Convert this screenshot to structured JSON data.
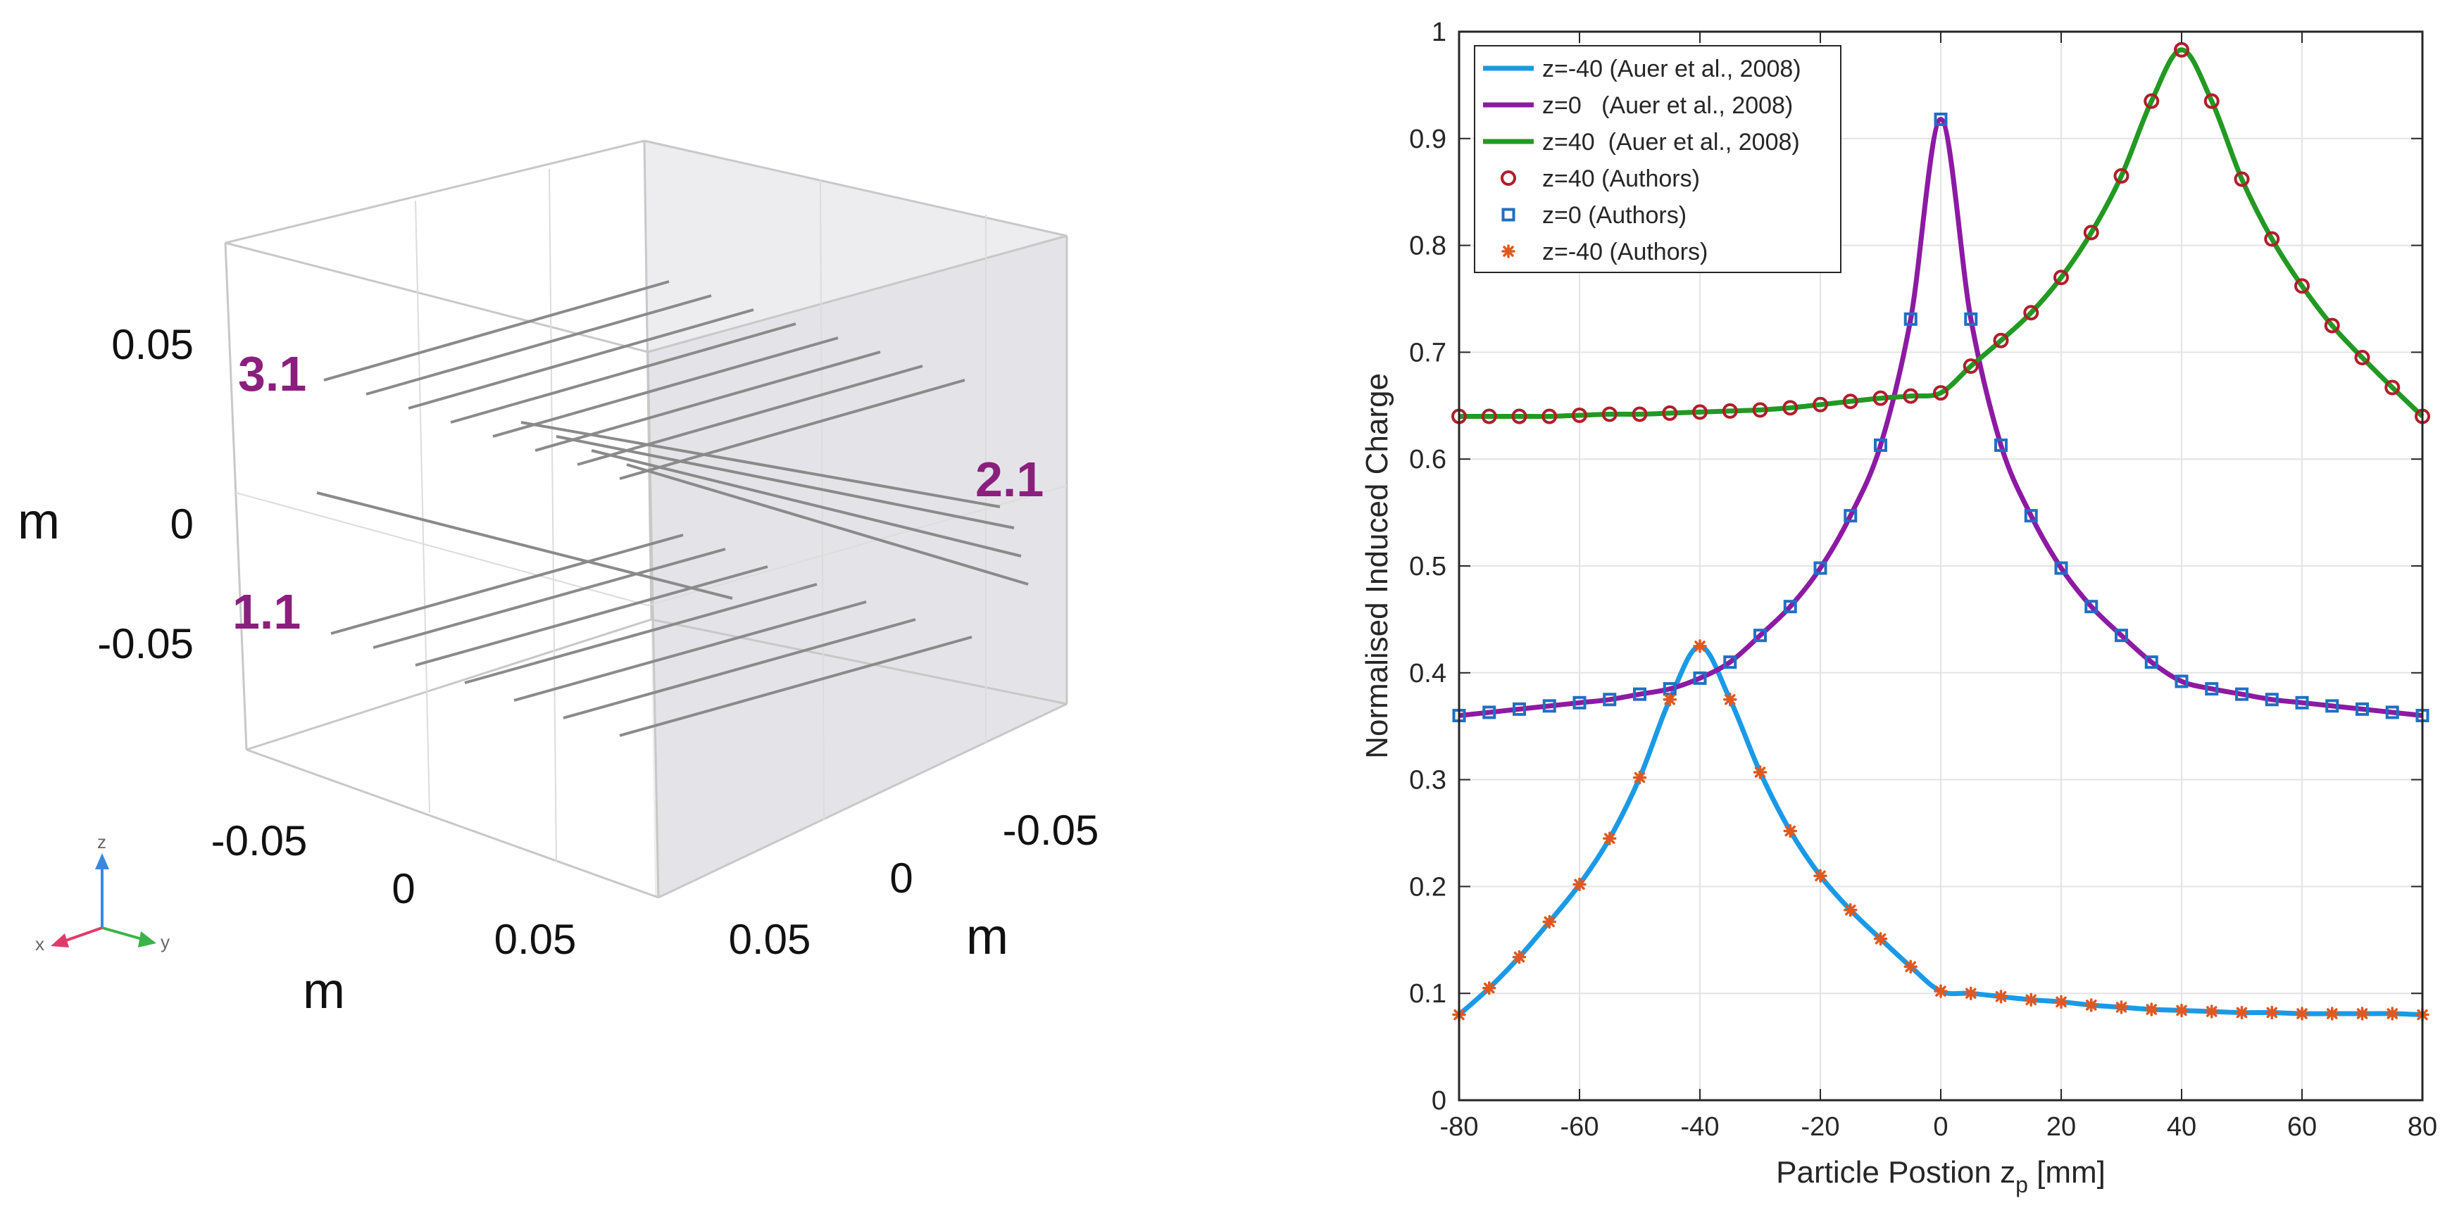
{
  "figure_3d": {
    "axis_letter_m": "m",
    "z_ticks": [
      "0.05",
      "0",
      "-0.05"
    ],
    "x_ticks": [
      "-0.05",
      "0",
      "0.05"
    ],
    "y_ticks": [
      "-0.05",
      "0",
      "0.05"
    ],
    "electrode_labels": [
      "3.1",
      "2.1",
      "1.1"
    ],
    "triad": {
      "z": "z",
      "x": "x",
      "y": "y"
    },
    "colors": {
      "label": "#8b1f7d",
      "frame": "#c8c8c8",
      "wall": "#e9e9ec",
      "rod": "#8a8a8a"
    }
  },
  "chart_data": {
    "type": "line",
    "xlabel_main": "Particle Postion z",
    "xlabel_sub": "p",
    "xlabel_unit": " [mm]",
    "ylabel": "Normalised Induced Charge",
    "xlim": [
      -80,
      80
    ],
    "ylim": [
      0,
      1
    ],
    "x_ticks": [
      -80,
      -60,
      -40,
      -20,
      0,
      20,
      40,
      60,
      80
    ],
    "y_ticks": [
      0,
      0.1,
      0.2,
      0.3,
      0.4,
      0.5,
      0.6,
      0.7,
      0.8,
      0.9,
      1
    ],
    "grid": true,
    "legend_position": "top-left",
    "x": [
      -80,
      -75,
      -70,
      -65,
      -60,
      -55,
      -50,
      -45,
      -40,
      -35,
      -30,
      -25,
      -20,
      -15,
      -10,
      -5,
      0,
      5,
      10,
      15,
      20,
      25,
      30,
      35,
      40,
      45,
      50,
      55,
      60,
      65,
      70,
      75,
      80
    ],
    "series": [
      {
        "name": "z=-40 (Auer et al., 2008)",
        "kind": "line",
        "color": "#1a9ae6",
        "values": [
          0.08,
          0.105,
          0.134,
          0.167,
          0.202,
          0.245,
          0.302,
          0.375,
          0.425,
          0.375,
          0.307,
          0.252,
          0.21,
          0.178,
          0.151,
          0.125,
          0.102,
          0.1,
          0.097,
          0.094,
          0.092,
          0.089,
          0.087,
          0.085,
          0.084,
          0.083,
          0.082,
          0.082,
          0.081,
          0.081,
          0.081,
          0.081,
          0.08
        ]
      },
      {
        "name": "z=0   (Auer et al., 2008)",
        "kind": "line",
        "color": "#8c1aa3",
        "values": [
          0.36,
          0.363,
          0.366,
          0.369,
          0.372,
          0.375,
          0.38,
          0.385,
          0.395,
          0.41,
          0.435,
          0.462,
          0.498,
          0.547,
          0.613,
          0.731,
          0.918,
          0.731,
          0.613,
          0.547,
          0.498,
          0.462,
          0.435,
          0.41,
          0.392,
          0.385,
          0.38,
          0.375,
          0.372,
          0.369,
          0.366,
          0.363,
          0.36
        ]
      },
      {
        "name": "z=40  (Auer et al., 2008)",
        "kind": "line",
        "color": "#229922",
        "values": [
          0.64,
          0.64,
          0.64,
          0.64,
          0.641,
          0.642,
          0.642,
          0.643,
          0.644,
          0.645,
          0.646,
          0.648,
          0.651,
          0.654,
          0.657,
          0.659,
          0.662,
          0.687,
          0.711,
          0.737,
          0.77,
          0.812,
          0.865,
          0.935,
          0.983,
          0.935,
          0.862,
          0.806,
          0.762,
          0.725,
          0.695,
          0.667,
          0.64
        ]
      },
      {
        "name": "z=40 (Authors)",
        "kind": "circle",
        "color": "#b01e2a",
        "values": [
          0.64,
          0.64,
          0.64,
          0.64,
          0.641,
          0.642,
          0.642,
          0.643,
          0.644,
          0.645,
          0.646,
          0.648,
          0.651,
          0.654,
          0.657,
          0.659,
          0.662,
          0.687,
          0.711,
          0.737,
          0.77,
          0.812,
          0.865,
          0.935,
          0.983,
          0.935,
          0.862,
          0.806,
          0.762,
          0.725,
          0.695,
          0.667,
          0.64
        ]
      },
      {
        "name": "z=0 (Authors)",
        "kind": "square",
        "color": "#1f6fc2",
        "values": [
          0.36,
          0.363,
          0.366,
          0.369,
          0.372,
          0.375,
          0.38,
          0.385,
          0.395,
          0.41,
          0.435,
          0.462,
          0.498,
          0.547,
          0.613,
          0.731,
          0.918,
          0.731,
          0.613,
          0.547,
          0.498,
          0.462,
          0.435,
          0.41,
          0.392,
          0.385,
          0.38,
          0.375,
          0.372,
          0.369,
          0.366,
          0.363,
          0.36
        ]
      },
      {
        "name": "z=-40 (Authors)",
        "kind": "star",
        "color": "#e0581f",
        "values": [
          0.08,
          0.105,
          0.134,
          0.167,
          0.202,
          0.245,
          0.302,
          0.375,
          0.425,
          0.375,
          0.307,
          0.252,
          0.21,
          0.178,
          0.151,
          0.125,
          0.102,
          0.1,
          0.097,
          0.094,
          0.092,
          0.089,
          0.087,
          0.085,
          0.084,
          0.083,
          0.082,
          0.082,
          0.081,
          0.081,
          0.081,
          0.081,
          0.08
        ]
      }
    ]
  }
}
